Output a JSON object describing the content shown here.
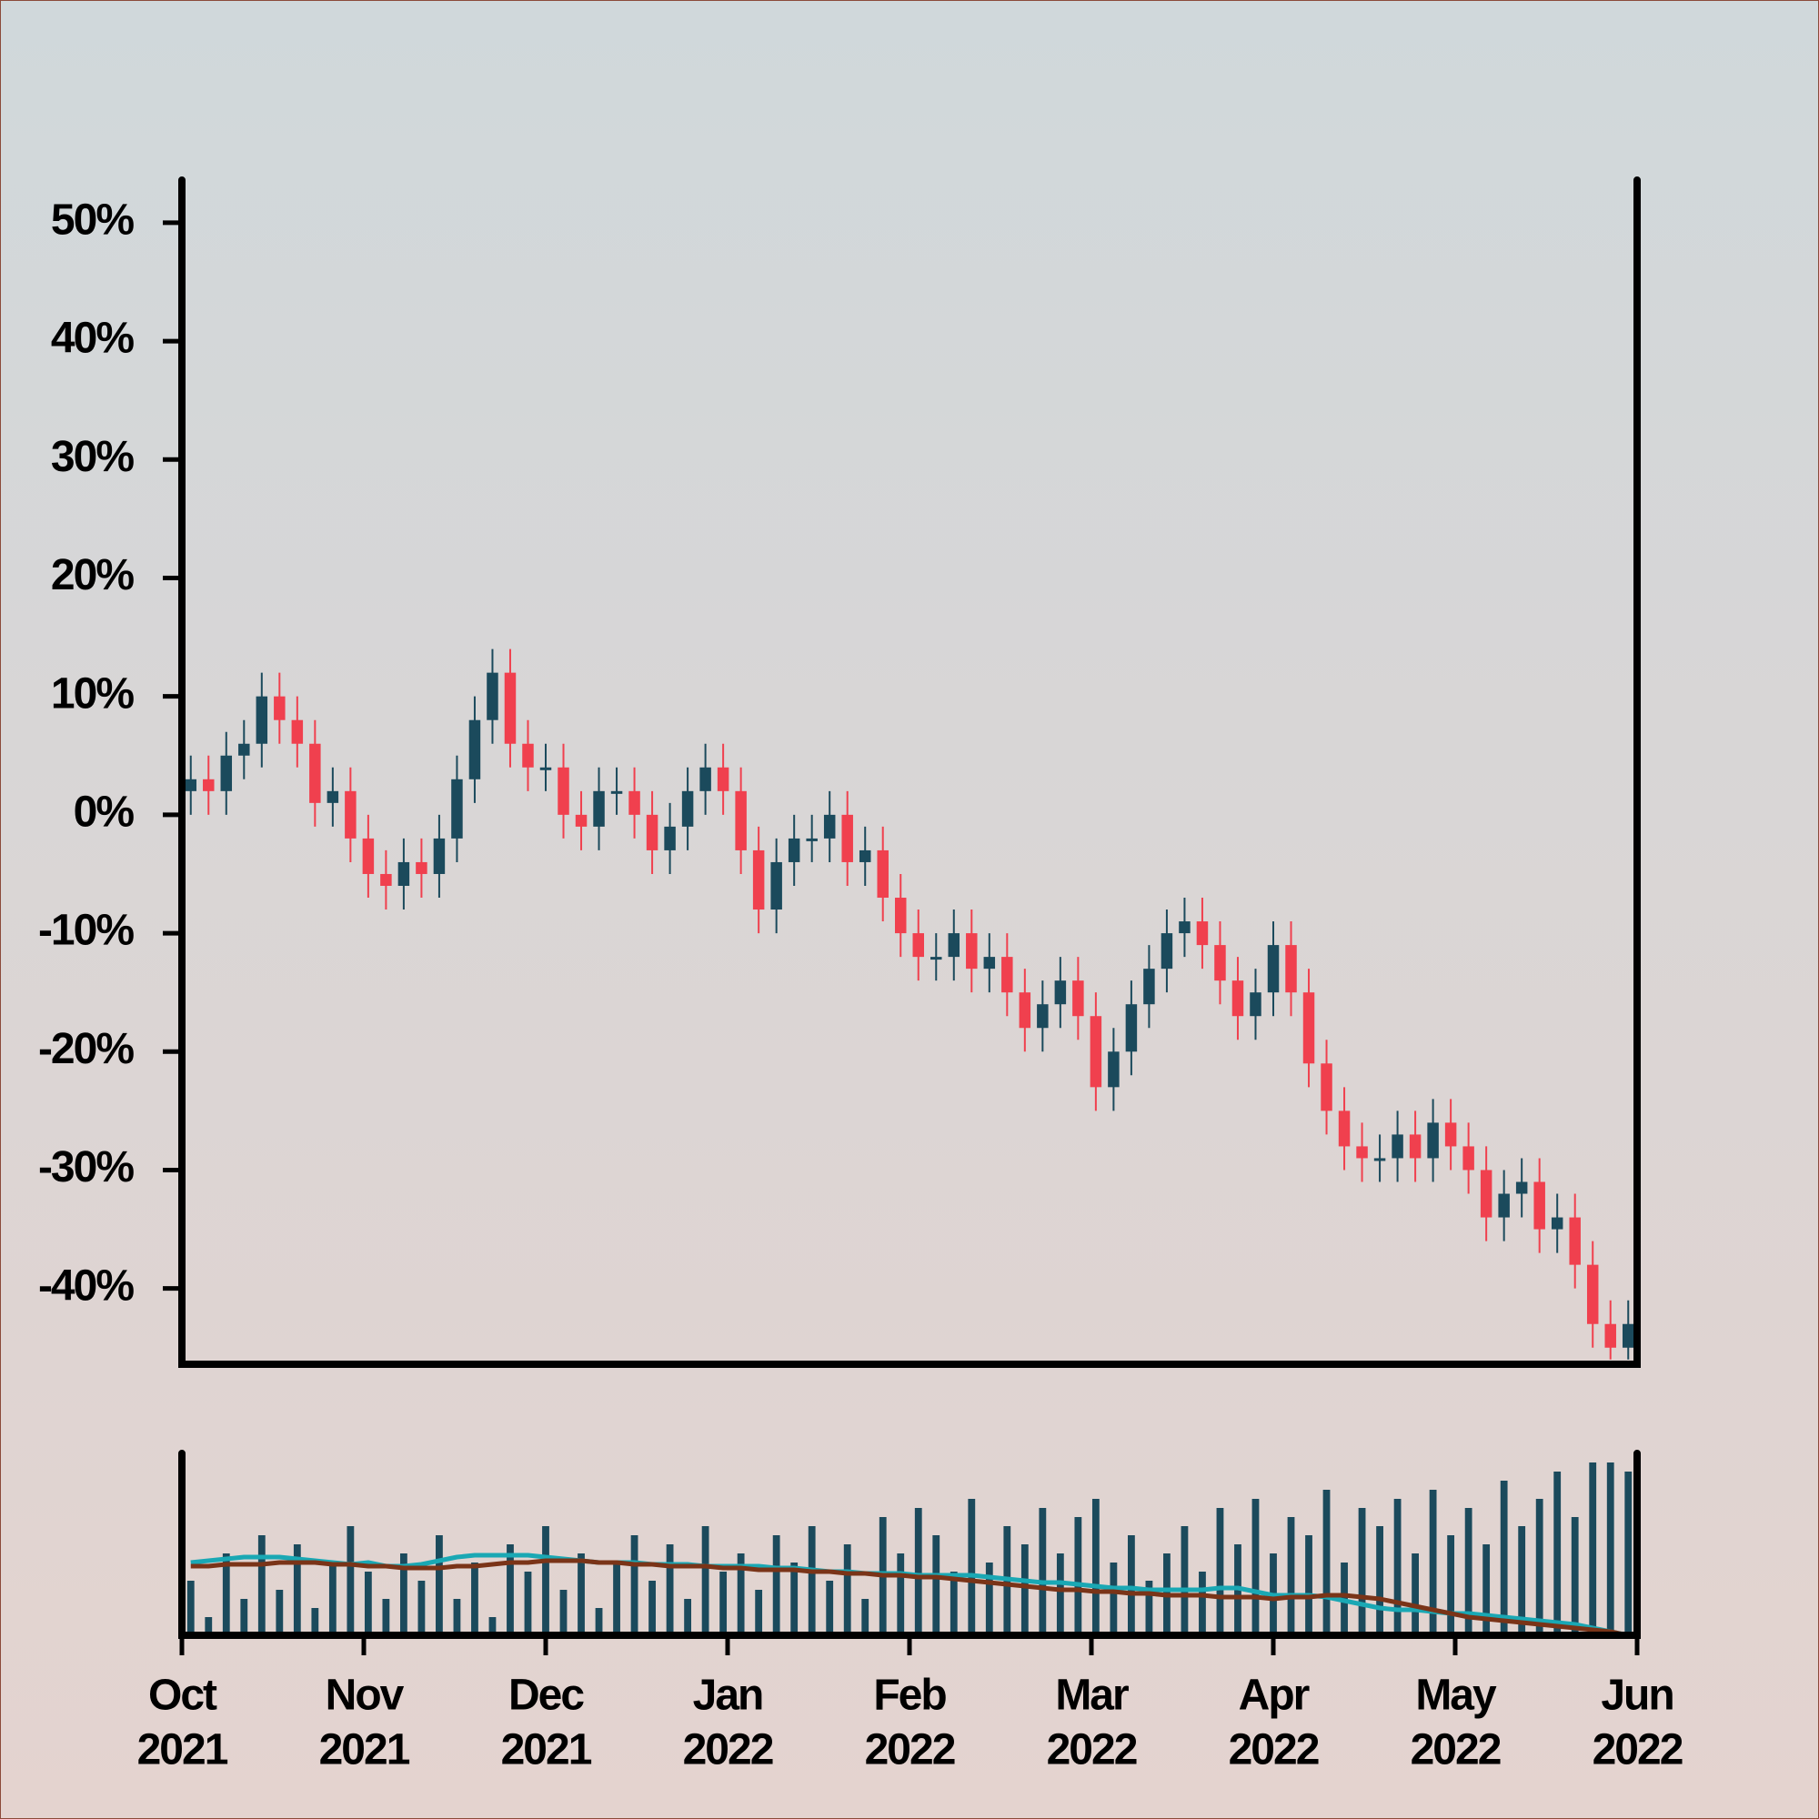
{
  "chart_data": {
    "type": "candlestick",
    "up_color": "#1b4a5c",
    "down_color": "#f0404e",
    "open": [
      2,
      3,
      2,
      5,
      6,
      10,
      8,
      6,
      1,
      2,
      -2,
      -5,
      -6,
      -4,
      -5,
      -2,
      3,
      8,
      12,
      6,
      4,
      4,
      0,
      -1,
      2,
      2,
      0,
      -3,
      -1,
      2,
      4,
      2,
      -3,
      -8,
      -4,
      -2,
      -2,
      0,
      -4,
      -3,
      -7,
      -10,
      -12,
      -12,
      -10,
      -13,
      -12,
      -15,
      -18,
      -16,
      -14,
      -17,
      -23,
      -20,
      -16,
      -13,
      -10,
      -9,
      -11,
      -14,
      -17,
      -15,
      -11,
      -15,
      -21,
      -25,
      -28,
      -29,
      -29,
      -27,
      -29,
      -26,
      -28,
      -30,
      -34,
      -32,
      -31,
      -35,
      -34,
      -38,
      -43,
      -45
    ],
    "high": [
      5,
      5,
      7,
      8,
      12,
      12,
      10,
      8,
      4,
      4,
      0,
      -3,
      -2,
      -2,
      0,
      5,
      10,
      14,
      14,
      8,
      6,
      6,
      2,
      4,
      4,
      4,
      2,
      1,
      4,
      6,
      6,
      4,
      -1,
      -2,
      0,
      0,
      2,
      2,
      -1,
      -1,
      -5,
      -8,
      -10,
      -8,
      -8,
      -10,
      -10,
      -13,
      -14,
      -12,
      -12,
      -15,
      -18,
      -14,
      -11,
      -8,
      -7,
      -7,
      -9,
      -12,
      -13,
      -9,
      -9,
      -13,
      -19,
      -23,
      -26,
      -27,
      -25,
      -25,
      -24,
      -24,
      -26,
      -28,
      -30,
      -29,
      -29,
      -32,
      -32,
      -36,
      -41,
      -41
    ],
    "low": [
      0,
      0,
      0,
      3,
      4,
      6,
      4,
      -1,
      -1,
      -4,
      -7,
      -8,
      -8,
      -7,
      -7,
      -4,
      1,
      6,
      4,
      2,
      2,
      -2,
      -3,
      -3,
      0,
      -2,
      -5,
      -5,
      -3,
      0,
      0,
      -5,
      -10,
      -10,
      -6,
      -4,
      -4,
      -6,
      -6,
      -9,
      -12,
      -14,
      -14,
      -14,
      -15,
      -15,
      -17,
      -20,
      -20,
      -18,
      -19,
      -25,
      -25,
      -22,
      -18,
      -15,
      -12,
      -13,
      -16,
      -19,
      -19,
      -17,
      -17,
      -23,
      -27,
      -30,
      -31,
      -31,
      -31,
      -31,
      -31,
      -30,
      -32,
      -36,
      -36,
      -34,
      -37,
      -37,
      -40,
      -45,
      -46,
      -46
    ],
    "close": [
      3,
      2,
      5,
      6,
      10,
      8,
      6,
      1,
      2,
      -2,
      -5,
      -6,
      -4,
      -5,
      -2,
      3,
      8,
      12,
      6,
      4,
      4,
      0,
      -1,
      2,
      2,
      0,
      -3,
      -1,
      2,
      4,
      2,
      -3,
      -8,
      -4,
      -2,
      -2,
      0,
      -4,
      -3,
      -7,
      -10,
      -12,
      -12,
      -10,
      -13,
      -12,
      -15,
      -18,
      -16,
      -14,
      -17,
      -23,
      -20,
      -16,
      -13,
      -10,
      -9,
      -11,
      -14,
      -17,
      -15,
      -11,
      -15,
      -21,
      -25,
      -28,
      -29,
      -29,
      -27,
      -29,
      -26,
      -28,
      -30,
      -34,
      -32,
      -31,
      -35,
      -34,
      -38,
      -43,
      -45,
      -43
    ],
    "ylim": [
      -46.4,
      53.6
    ],
    "yticks": [
      {
        "value": -40,
        "label": "-40%"
      },
      {
        "value": -30,
        "label": "-30%"
      },
      {
        "value": -20,
        "label": "-20%"
      },
      {
        "value": -10,
        "label": "-10%"
      },
      {
        "value": 0,
        "label": "0%"
      },
      {
        "value": 10,
        "label": "10%"
      },
      {
        "value": 20,
        "label": "20%"
      },
      {
        "value": 30,
        "label": "30%"
      },
      {
        "value": 40,
        "label": "40%"
      },
      {
        "value": 50,
        "label": "50%"
      }
    ],
    "xtick_labels": [
      [
        "Oct",
        "2021"
      ],
      [
        "Nov",
        "2021"
      ],
      [
        "Dec",
        "2021"
      ],
      [
        "Jan",
        "2022"
      ],
      [
        "Feb",
        "2022"
      ],
      [
        "Mar",
        "2022"
      ],
      [
        "Apr",
        "2022"
      ],
      [
        "May",
        "2022"
      ],
      [
        "Jun",
        "2022"
      ]
    ],
    "volume": {
      "color": "#1b4a5c",
      "ylim": [
        0,
        100
      ],
      "values": [
        30,
        10,
        45,
        20,
        55,
        25,
        50,
        15,
        40,
        60,
        35,
        20,
        45,
        30,
        55,
        20,
        40,
        10,
        50,
        35,
        60,
        25,
        45,
        15,
        40,
        55,
        30,
        50,
        20,
        60,
        35,
        45,
        25,
        55,
        40,
        60,
        30,
        50,
        20,
        65,
        45,
        70,
        55,
        35,
        75,
        40,
        60,
        50,
        70,
        45,
        65,
        75,
        40,
        55,
        30,
        45,
        60,
        35,
        70,
        50,
        75,
        45,
        65,
        55,
        80,
        40,
        70,
        60,
        75,
        45,
        80,
        55,
        70,
        50,
        85,
        60,
        75,
        90,
        65,
        95,
        95,
        90
      ]
    },
    "moving_averages": [
      {
        "color": "#1aa8b4",
        "values": [
          40,
          41,
          42,
          43,
          43,
          43,
          42,
          41,
          40,
          39,
          40,
          38,
          38,
          39,
          41,
          43,
          44,
          44,
          44,
          44,
          43,
          42,
          41,
          40,
          40,
          40,
          39,
          39,
          39,
          38,
          38,
          38,
          38,
          37,
          37,
          36,
          35,
          35,
          34,
          34,
          34,
          33,
          33,
          33,
          33,
          32,
          31,
          30,
          29,
          29,
          28,
          27,
          26,
          26,
          25,
          25,
          25,
          25,
          26,
          26,
          24,
          22,
          22,
          22,
          21,
          19,
          17,
          15,
          14,
          14,
          13,
          12,
          12,
          11,
          10,
          9,
          8,
          7,
          6,
          4,
          2,
          0
        ]
      },
      {
        "color": "#7a3418",
        "values": [
          38,
          38,
          39,
          39,
          39,
          40,
          40,
          40,
          39,
          39,
          38,
          38,
          37,
          37,
          37,
          38,
          38,
          39,
          40,
          40,
          41,
          41,
          41,
          40,
          40,
          39,
          39,
          38,
          38,
          38,
          37,
          37,
          36,
          36,
          36,
          35,
          35,
          34,
          34,
          33,
          33,
          32,
          32,
          31,
          30,
          29,
          28,
          27,
          26,
          25,
          25,
          24,
          24,
          23,
          23,
          22,
          22,
          22,
          21,
          21,
          21,
          20,
          21,
          21,
          22,
          22,
          21,
          20,
          18,
          16,
          14,
          12,
          10,
          9,
          8,
          7,
          6,
          5,
          4,
          3,
          2,
          0
        ]
      }
    ]
  }
}
